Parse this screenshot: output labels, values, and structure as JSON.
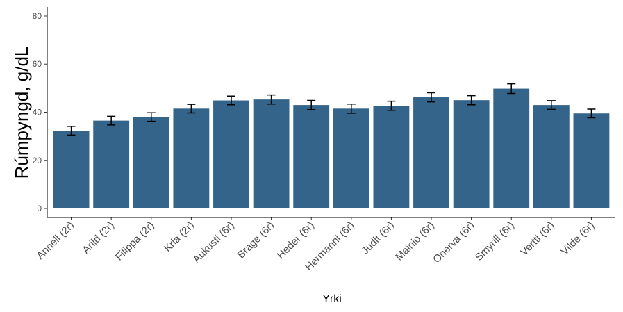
{
  "chart_data": {
    "type": "bar",
    "x_label": "Yrki",
    "y_label": "Rúmpyngd, g/dL",
    "categories": [
      "Anneli (2r)",
      "Arild (2r)",
      "Filippa (2r)",
      "Kria (2r)",
      "Aukusti (6r)",
      "Brage (6r)",
      "Heder (6r)",
      "Hermanni (6r)",
      "Judit (6r)",
      "Mainio (6r)",
      "Onerva (6r)",
      "Smyrill (6r)",
      "Vertti (6r)",
      "Vilde (6r)"
    ],
    "values": [
      32.3,
      36.5,
      38,
      41.5,
      44.9,
      45.3,
      43,
      41.5,
      42.7,
      46.2,
      45,
      49.8,
      43,
      39.5
    ],
    "errors": [
      1.8,
      1.8,
      1.8,
      1.8,
      1.8,
      1.9,
      1.9,
      1.9,
      1.9,
      1.9,
      1.9,
      2,
      1.8,
      1.8
    ],
    "color": "#35648b",
    "ylim": [
      -3.75,
      83.75
    ],
    "yticks": [
      0,
      20,
      40,
      60,
      80
    ]
  }
}
